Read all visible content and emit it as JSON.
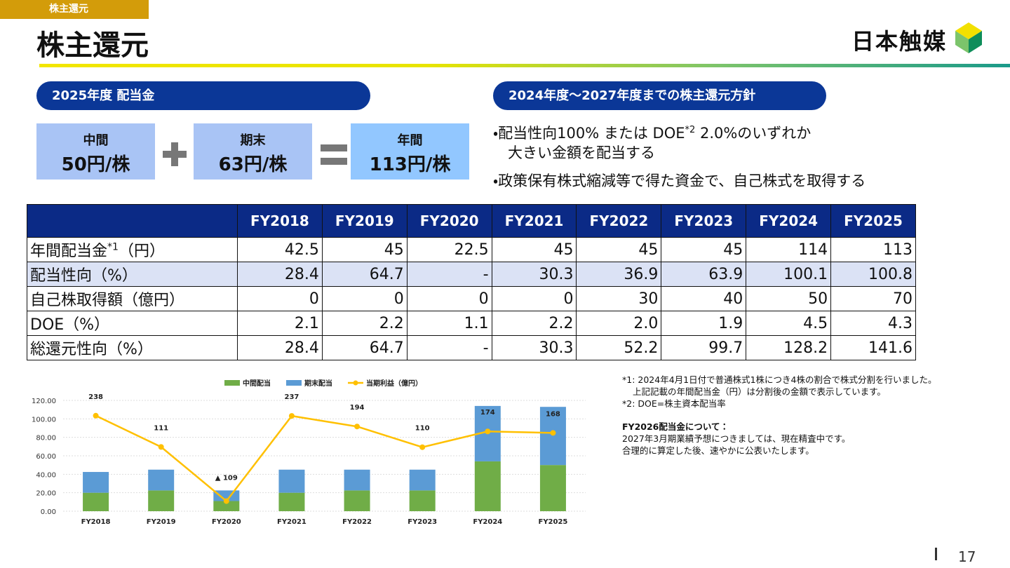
{
  "header": {
    "tag": "株主還元",
    "title": "株主還元",
    "logo": "日本触媒"
  },
  "dividend": {
    "heading": "2025年度 配当金",
    "boxes": [
      {
        "label": "中間",
        "value": "50円/株"
      },
      {
        "label": "期末",
        "value": "63円/株"
      },
      {
        "label": "年間",
        "value": "113円/株"
      }
    ]
  },
  "policy": {
    "heading": "2024年度～2027年度までの株主還元方針",
    "items": [
      {
        "bullet": "・",
        "text": "配当性向100% または DOE",
        "sup": "*2",
        "text2": " 2.0%のいずれか",
        "line2": "大きい金額を配当する"
      },
      {
        "bullet": "・",
        "text": "政策保有株式縮減等で得た資金で、自己株式を取得する"
      }
    ]
  },
  "table": {
    "header": [
      "FY2018",
      "FY2019",
      "FY2020",
      "FY2021",
      "FY2022",
      "FY2023",
      "FY2024",
      "FY2025"
    ],
    "rows": [
      {
        "label": "年間配当金",
        "sup": "*1",
        "unit": "（円）",
        "cells": [
          "42.5",
          "45",
          "22.5",
          "45",
          "45",
          "45",
          "114",
          "113"
        ]
      },
      {
        "label": "配当性向（%）",
        "cells": [
          "28.4",
          "64.7",
          "-",
          "30.3",
          "36.9",
          "63.9",
          "100.1",
          "100.8"
        ]
      },
      {
        "label": "自己株取得額（億円）",
        "cells": [
          "0",
          "0",
          "0",
          "0",
          "30",
          "40",
          "50",
          "70"
        ]
      },
      {
        "label": "DOE（%）",
        "cells": [
          "2.1",
          "2.2",
          "1.1",
          "2.2",
          "2.0",
          "1.9",
          "4.5",
          "4.3"
        ]
      },
      {
        "label": "総還元性向（%）",
        "cells": [
          "28.4",
          "64.7",
          "-",
          "30.3",
          "52.2",
          "99.7",
          "128.2",
          "141.6"
        ]
      }
    ]
  },
  "notes": {
    "lines": [
      "*1: 2024年4月1日付で普通株式1株につき4株の割合で株式分割を行いました。",
      "上記記載の年間配当金（円）は分割後の金額で表示しています。",
      "*2: DOE=株主資本配当率"
    ],
    "heading": "FY2026配当金について：",
    "body": [
      "2027年3月期業績予想につきましては、現在精査中です。",
      "合理的に算定した後、速やかに公表いたします。"
    ]
  },
  "page_number": "17",
  "chart_data": {
    "type": "bar",
    "stacked": true,
    "categories": [
      "FY2018",
      "FY2019",
      "FY2020",
      "FY2021",
      "FY2022",
      "FY2023",
      "FY2024",
      "FY2025"
    ],
    "series": [
      {
        "name": "中間配当",
        "color": "#70ad47",
        "values": [
          20,
          22.5,
          11,
          20,
          22.5,
          22.5,
          54,
          50
        ]
      },
      {
        "name": "期末配当",
        "color": "#5b9bd5",
        "values": [
          22.5,
          22.5,
          11.5,
          25,
          22.5,
          22.5,
          60,
          63
        ]
      },
      {
        "name": "当期利益（億円）",
        "type": "line",
        "axis": "y2",
        "color": "#ffc000",
        "values": [
          238,
          111,
          -109,
          237,
          194,
          110,
          174,
          168
        ],
        "value_labels": [
          "238",
          "111",
          "▲ 109",
          "237",
          "194",
          "110",
          "174",
          "168"
        ]
      }
    ],
    "ylim": [
      0,
      120
    ],
    "yticks": [
      {
        "value": 0,
        "label": "0.00"
      },
      {
        "value": 20,
        "label": "20.00"
      },
      {
        "value": 40,
        "label": "40.00"
      },
      {
        "value": 60,
        "label": "60.00"
      },
      {
        "value": 80,
        "label": "80.00"
      },
      {
        "value": 100,
        "label": "100.00"
      },
      {
        "value": 120,
        "label": "120.00"
      }
    ],
    "y2lim": [
      -150,
      300
    ],
    "grid": true,
    "legend": "top"
  }
}
